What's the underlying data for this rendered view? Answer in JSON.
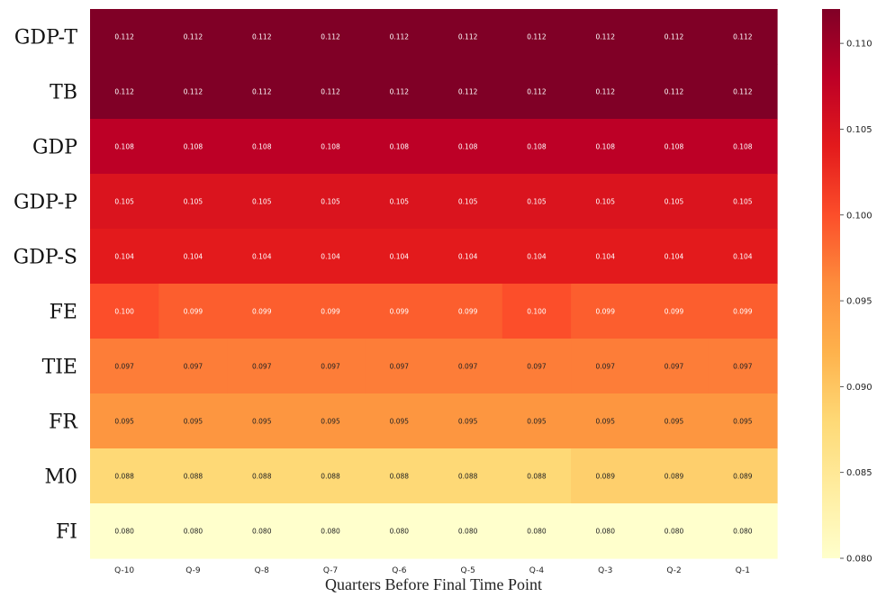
{
  "chart_data": {
    "type": "heatmap",
    "title": "",
    "xlabel": "Quarters Before Final Time Point",
    "ylabel": "",
    "x_categories": [
      "Q-10",
      "Q-9",
      "Q-8",
      "Q-7",
      "Q-6",
      "Q-5",
      "Q-4",
      "Q-3",
      "Q-2",
      "Q-1"
    ],
    "y_categories": [
      "GDP-T",
      "TB",
      "GDP",
      "GDP-P",
      "GDP-S",
      "FE",
      "TIE",
      "FR",
      "M0",
      "FI"
    ],
    "values": [
      [
        0.112,
        0.112,
        0.112,
        0.112,
        0.112,
        0.112,
        0.112,
        0.112,
        0.112,
        0.112
      ],
      [
        0.112,
        0.112,
        0.112,
        0.112,
        0.112,
        0.112,
        0.112,
        0.112,
        0.112,
        0.112
      ],
      [
        0.108,
        0.108,
        0.108,
        0.108,
        0.108,
        0.108,
        0.108,
        0.108,
        0.108,
        0.108
      ],
      [
        0.105,
        0.105,
        0.105,
        0.105,
        0.105,
        0.105,
        0.105,
        0.105,
        0.105,
        0.105
      ],
      [
        0.104,
        0.104,
        0.104,
        0.104,
        0.104,
        0.104,
        0.104,
        0.104,
        0.104,
        0.104
      ],
      [
        0.1,
        0.099,
        0.099,
        0.099,
        0.099,
        0.099,
        0.1,
        0.099,
        0.099,
        0.099
      ],
      [
        0.097,
        0.097,
        0.097,
        0.097,
        0.097,
        0.097,
        0.097,
        0.097,
        0.097,
        0.097
      ],
      [
        0.095,
        0.095,
        0.095,
        0.095,
        0.095,
        0.095,
        0.095,
        0.095,
        0.095,
        0.095
      ],
      [
        0.088,
        0.088,
        0.088,
        0.088,
        0.088,
        0.088,
        0.088,
        0.089,
        0.089,
        0.089
      ],
      [
        0.08,
        0.08,
        0.08,
        0.08,
        0.08,
        0.08,
        0.08,
        0.08,
        0.08,
        0.08
      ]
    ],
    "value_labels": [
      [
        "0.112",
        "0.112",
        "0.112",
        "0.112",
        "0.112",
        "0.112",
        "0.112",
        "0.112",
        "0.112",
        "0.112"
      ],
      [
        "0.112",
        "0.112",
        "0.112",
        "0.112",
        "0.112",
        "0.112",
        "0.112",
        "0.112",
        "0.112",
        "0.112"
      ],
      [
        "0.108",
        "0.108",
        "0.108",
        "0.108",
        "0.108",
        "0.108",
        "0.108",
        "0.108",
        "0.108",
        "0.108"
      ],
      [
        "0.105",
        "0.105",
        "0.105",
        "0.105",
        "0.105",
        "0.105",
        "0.105",
        "0.105",
        "0.105",
        "0.105"
      ],
      [
        "0.104",
        "0.104",
        "0.104",
        "0.104",
        "0.104",
        "0.104",
        "0.104",
        "0.104",
        "0.104",
        "0.104"
      ],
      [
        "0.100",
        "0.099",
        "0.099",
        "0.099",
        "0.099",
        "0.099",
        "0.100",
        "0.099",
        "0.099",
        "0.099"
      ],
      [
        "0.097",
        "0.097",
        "0.097",
        "0.097",
        "0.097",
        "0.097",
        "0.097",
        "0.097",
        "0.097",
        "0.097"
      ],
      [
        "0.095",
        "0.095",
        "0.095",
        "0.095",
        "0.095",
        "0.095",
        "0.095",
        "0.095",
        "0.095",
        "0.095"
      ],
      [
        "0.088",
        "0.088",
        "0.088",
        "0.088",
        "0.088",
        "0.088",
        "0.088",
        "0.089",
        "0.089",
        "0.089"
      ],
      [
        "0.080",
        "0.080",
        "0.080",
        "0.080",
        "0.080",
        "0.080",
        "0.080",
        "0.080",
        "0.080",
        "0.080"
      ]
    ],
    "colorbar": {
      "range": [
        0.08,
        0.112
      ],
      "ticks": [
        0.08,
        0.085,
        0.09,
        0.095,
        0.1,
        0.105,
        0.11
      ],
      "tick_labels": [
        "0.080",
        "0.085",
        "0.090",
        "0.095",
        "0.100",
        "0.105",
        "0.110"
      ],
      "colormap": "YlOrRd",
      "colors": [
        "#ffffcc",
        "#ffeda0",
        "#fed976",
        "#feb24c",
        "#fd8d3c",
        "#fc4e2a",
        "#e31a1c",
        "#bd0026",
        "#800026"
      ]
    },
    "grid": false
  }
}
